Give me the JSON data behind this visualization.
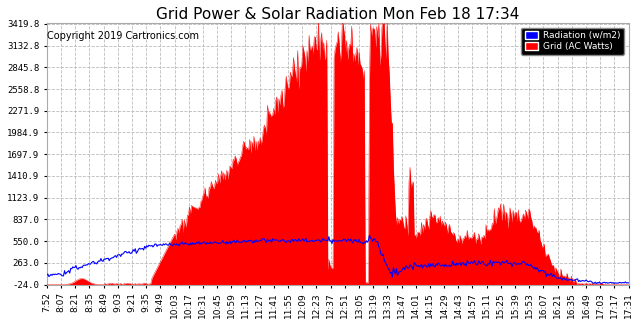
{
  "title": "Grid Power & Solar Radiation Mon Feb 18 17:34",
  "copyright": "Copyright 2019 Cartronics.com",
  "legend_labels": [
    "Radiation (w/m2)",
    "Grid (AC Watts)"
  ],
  "legend_colors": [
    "#0000ff",
    "#ff0000"
  ],
  "yticks": [
    3419.8,
    3132.8,
    2845.8,
    2558.8,
    2271.9,
    1984.9,
    1697.9,
    1410.9,
    1123.9,
    837.0,
    550.0,
    263.0,
    -24.0
  ],
  "xtick_labels": [
    "7:52",
    "8:07",
    "8:21",
    "8:35",
    "8:49",
    "9:03",
    "9:21",
    "9:35",
    "9:49",
    "10:03",
    "10:17",
    "10:31",
    "10:45",
    "10:59",
    "11:13",
    "11:27",
    "11:41",
    "11:55",
    "12:09",
    "12:23",
    "12:37",
    "12:51",
    "13:05",
    "13:19",
    "13:33",
    "13:47",
    "14:01",
    "14:15",
    "14:29",
    "14:43",
    "14:57",
    "15:11",
    "15:25",
    "15:39",
    "15:53",
    "16:07",
    "16:21",
    "16:35",
    "16:49",
    "17:03",
    "17:17",
    "17:31"
  ],
  "bg_color": "#ffffff",
  "grid_color": "#bbbbbb",
  "y_min": -24.0,
  "y_max": 3419.8,
  "title_fontsize": 11,
  "copyright_fontsize": 7,
  "tick_fontsize": 6.5,
  "n_points": 560
}
